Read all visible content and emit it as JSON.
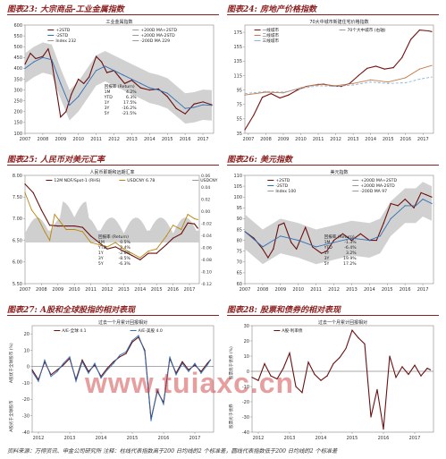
{
  "watermark": "www.tuiaxc.cn",
  "footer": {
    "source": "资料来源：万得资讯、申金公司研究所    注释：柱线代表指数高于200 日均线的2 个标准差，圆线代表指数低于200 日均线的2 个标准差"
  },
  "colors": {
    "title_red": "#8b1f1f",
    "band_gray": "#bdbdbd",
    "series_dark": "#6b0f0f",
    "series_blue": "#2f6fb5",
    "series_gold": "#b8860b"
  },
  "chart_data": [
    {
      "id": "c23",
      "type": "line",
      "panel_title": "图表23: 大宗商品-工业金属指数",
      "title": "工业金属指数",
      "x_ticks": [
        "2007",
        "2008",
        "2009",
        "2010",
        "2011",
        "2012",
        "2013",
        "2014",
        "2015",
        "2016",
        "2017"
      ],
      "xlim": [
        2007,
        2017.6
      ],
      "ylim": [
        100,
        600
      ],
      "y_ticks": [
        "100",
        "150",
        "200",
        "250",
        "300",
        "350",
        "400",
        "450",
        "500",
        "550",
        "600"
      ],
      "legend": [
        "+2STD",
        "-2STD",
        "Index 232",
        "+200D MA+2STD",
        "+200D MA-2STD",
        "-200D MA 229"
      ],
      "series": [
        {
          "name": "Index 232",
          "color": "#6b0f0f",
          "x": [
            2007,
            2007.3,
            2007.6,
            2008,
            2008.3,
            2008.5,
            2008.8,
            2009,
            2009.3,
            2009.6,
            2010,
            2010.3,
            2010.6,
            2011,
            2011.3,
            2011.6,
            2012,
            2012.3,
            2012.6,
            2013,
            2013.5,
            2014,
            2014.5,
            2015,
            2015.5,
            2016,
            2016.5,
            2017,
            2017.5
          ],
          "values": [
            420,
            470,
            445,
            455,
            490,
            430,
            280,
            175,
            200,
            280,
            350,
            330,
            360,
            455,
            430,
            380,
            390,
            360,
            330,
            345,
            310,
            300,
            305,
            270,
            215,
            190,
            235,
            245,
            232
          ]
        },
        {
          "name": "-200D MA 229",
          "color": "#2f6fb5",
          "x": [
            2007,
            2007.5,
            2008,
            2008.5,
            2009,
            2009.5,
            2010,
            2010.5,
            2011,
            2011.5,
            2012,
            2012.5,
            2013,
            2013.5,
            2014,
            2014.5,
            2015,
            2015.5,
            2016,
            2016.5,
            2017,
            2017.5
          ],
          "values": [
            400,
            430,
            450,
            440,
            330,
            230,
            270,
            330,
            390,
            410,
            390,
            370,
            350,
            330,
            310,
            300,
            285,
            250,
            215,
            220,
            232,
            229
          ]
        }
      ],
      "inset": {
        "header": "回报率 (Return)",
        "rows": [
          [
            "1M",
            "4.2%"
          ],
          [
            "YTD",
            "6.3%"
          ],
          [
            "1Y",
            "17.5%"
          ],
          [
            "3Y",
            "-16.2%"
          ],
          [
            "5Y",
            "-21.5%"
          ]
        ]
      }
    },
    {
      "id": "c24",
      "type": "line",
      "panel_title": "图表24: 房地产价格指数",
      "title": "70大中城市新建住宅价格指数",
      "x_ticks": [
        "2007",
        "2008",
        "2009",
        "2010",
        "2011",
        "2012",
        "2013",
        "2014",
        "2015",
        "2016",
        "2017"
      ],
      "xlim": [
        2006.8,
        2017.6
      ],
      "ylim": [
        35,
        185
      ],
      "y_ticks": [
        "35",
        "55",
        "75",
        "95",
        "115",
        "135",
        "155",
        "175"
      ],
      "legend": [
        "一线城市",
        "二线城市",
        "三线城市",
        "70个大中城市 (右轴)"
      ],
      "series": [
        {
          "name": "一线城市",
          "color": "#7a1010",
          "x": [
            2006.8,
            2007.3,
            2007.8,
            2008.3,
            2008.8,
            2009.3,
            2009.8,
            2010.3,
            2010.8,
            2011.3,
            2011.8,
            2012.3,
            2012.8,
            2013.3,
            2013.8,
            2014.3,
            2014.8,
            2015.3,
            2015.8,
            2016.3,
            2016.8,
            2017.3,
            2017.5
          ],
          "values": [
            40,
            60,
            85,
            90,
            84,
            88,
            95,
            100,
            102,
            103,
            101,
            100,
            104,
            115,
            125,
            128,
            124,
            126,
            140,
            165,
            178,
            177,
            176
          ]
        },
        {
          "name": "二线城市",
          "color": "#c77a4a",
          "x": [
            2006.8,
            2008,
            2009,
            2010,
            2011,
            2012,
            2013,
            2014,
            2015,
            2016,
            2016.8,
            2017.5
          ],
          "values": [
            88,
            92,
            91,
            98,
            103,
            101,
            104,
            109,
            106,
            112,
            124,
            129
          ]
        },
        {
          "name": "三线城市",
          "color": "#8fb3d9",
          "x": [
            2006.8,
            2008,
            2009,
            2010,
            2011,
            2012,
            2013,
            2014,
            2015,
            2016,
            2016.8,
            2017.5
          ],
          "values": [
            90,
            93,
            92,
            97,
            101,
            100,
            102,
            106,
            104,
            105,
            110,
            113
          ]
        }
      ]
    },
    {
      "id": "c25",
      "type": "line",
      "panel_title": "图表25: 人民币对美元汇率",
      "title": "人民币即期和远期汇率",
      "x_ticks": [
        "2007",
        "2008",
        "2009",
        "2010",
        "2011",
        "2012",
        "2013",
        "2014",
        "2015",
        "2016",
        "2017"
      ],
      "xlim": [
        2007,
        2017.6
      ],
      "ylim": [
        5.5,
        8.0
      ],
      "y_ticks": [
        "5.50",
        "6.00",
        "6.50",
        "7.00",
        "7.50",
        "8.00"
      ],
      "y2_ticks": [
        "-0.12",
        "-0.10",
        "-0.08",
        "-0.06",
        "-0.04",
        "-0.02",
        "0.00",
        "0.02",
        "0.04",
        "0.06"
      ],
      "legend": [
        "12M NDF/Spot-1 (RHS)",
        "USDCNY 6.78",
        "USDCNY 12M NDF 6.98"
      ],
      "series": [
        {
          "name": "USDCNY 6.78",
          "color": "#6b0f0f",
          "x": [
            2007,
            2007.5,
            2008,
            2008.5,
            2009,
            2010,
            2010.5,
            2011,
            2011.5,
            2012,
            2012.5,
            2013,
            2013.5,
            2014,
            2014.5,
            2015,
            2015.6,
            2016,
            2016.5,
            2016.9,
            2017.3,
            2017.5
          ],
          "values": [
            7.8,
            7.6,
            7.2,
            6.85,
            6.83,
            6.83,
            6.8,
            6.6,
            6.45,
            6.3,
            6.35,
            6.25,
            6.15,
            6.05,
            6.2,
            6.2,
            6.4,
            6.55,
            6.65,
            6.9,
            6.88,
            6.78
          ]
        },
        {
          "name": "USDCNY 12M NDF 6.98",
          "color": "#b8860b",
          "x": [
            2007,
            2007.4,
            2007.8,
            2008.2,
            2008.5,
            2008.8,
            2009.1,
            2009.5,
            2010,
            2010.5,
            2011,
            2011.5,
            2012,
            2012.5,
            2013,
            2013.5,
            2014,
            2014.5,
            2015,
            2015.6,
            2016,
            2016.5,
            2016.9,
            2017.3,
            2017.5
          ],
          "values": [
            7.6,
            7.2,
            7.0,
            6.7,
            6.5,
            7.1,
            6.95,
            6.75,
            6.75,
            6.7,
            6.45,
            6.4,
            6.35,
            6.45,
            6.3,
            6.2,
            6.1,
            6.25,
            6.3,
            6.6,
            6.85,
            6.75,
            7.1,
            7.0,
            6.98
          ]
        }
      ],
      "inset": {
        "header": "回报率 (Return)",
        "rows": [
          [
            "1M",
            "0.5%"
          ],
          [
            "YTD",
            "2.4%"
          ],
          [
            "1Y",
            "-2.0%"
          ],
          [
            "3Y",
            "-8.5%"
          ],
          [
            "5Y",
            "-6.3%"
          ]
        ]
      }
    },
    {
      "id": "c26",
      "type": "line",
      "panel_title": "图表26: 美元指数",
      "title": "美元指数",
      "x_ticks": [
        "2007",
        "2008",
        "2009",
        "2010",
        "2011",
        "2012",
        "2013",
        "2014",
        "2015",
        "2016",
        "2017"
      ],
      "xlim": [
        2007,
        2017.6
      ],
      "ylim": [
        60,
        110
      ],
      "y_ticks": [
        "60",
        "65",
        "70",
        "75",
        "80",
        "85",
        "90",
        "95",
        "100",
        "105",
        "110"
      ],
      "legend": [
        "+2STD",
        "-2STD",
        "Index 100",
        "+200D MA+2STD",
        "+200D MA-2STD",
        "-200D MA 97"
      ],
      "series": [
        {
          "name": "Index 100",
          "color": "#6b0f0f",
          "x": [
            2007,
            2007.5,
            2008,
            2008.3,
            2008.6,
            2008.9,
            2009.2,
            2009.6,
            2009.9,
            2010.4,
            2010.8,
            2011.3,
            2011.6,
            2012,
            2012.5,
            2013,
            2013.5,
            2014,
            2014.4,
            2014.8,
            2015.2,
            2015.6,
            2016,
            2016.5,
            2016.9,
            2017.2,
            2017.5
          ],
          "values": [
            84,
            81,
            76,
            72,
            76,
            87,
            88,
            79,
            76,
            86,
            77,
            74,
            75,
            80,
            83,
            80,
            83,
            80,
            80,
            88,
            97,
            96,
            99,
            95,
            102,
            101,
            100
          ]
        },
        {
          "name": "-200D MA 97",
          "color": "#2f6fb5",
          "x": [
            2007,
            2008,
            2009,
            2010,
            2011,
            2012,
            2013,
            2014,
            2014.6,
            2015.2,
            2016,
            2016.6,
            2017,
            2017.5
          ],
          "values": [
            84,
            77,
            82,
            80,
            77,
            79,
            81,
            80,
            82,
            90,
            96,
            96,
            99,
            97
          ]
        }
      ],
      "inset": {
        "header": "回报率 (Return)",
        "rows": [
          [
            "1M",
            "-1.3%"
          ],
          [
            "YTD",
            "-6.4%"
          ],
          [
            "1Y",
            "3.2%"
          ],
          [
            "3Y",
            "19.9%"
          ],
          [
            "5Y",
            "17.2%"
          ]
        ]
      }
    },
    {
      "id": "c27",
      "type": "line",
      "panel_title": "图表27: A股和全球股指的相对表现",
      "title": "过去一个月累计回报相对",
      "x_ticks": [
        "2012",
        "2013",
        "2014",
        "2015",
        "2016",
        "2017"
      ],
      "xlim": [
        2011.8,
        2017.6
      ],
      "ylim": [
        -40,
        25
      ],
      "y_ticks": [
        "-40",
        "-30",
        "-20",
        "-10",
        "0",
        "10",
        "20"
      ],
      "ylabel": "A股优于全球股市 (%)",
      "ylabel_bottom": "A股劣于全球股市",
      "legend": [
        "A/E-全球 4.1",
        "A/E-美股 4.0"
      ],
      "series": [
        {
          "name": "A/E-全球 4.1",
          "color": "#6b0f0f",
          "x": [
            2011.8,
            2012.0,
            2012.2,
            2012.4,
            2012.6,
            2012.8,
            2013.0,
            2013.2,
            2013.4,
            2013.6,
            2013.8,
            2014.0,
            2014.2,
            2014.4,
            2014.6,
            2014.8,
            2015.0,
            2015.2,
            2015.4,
            2015.6,
            2015.8,
            2016.0,
            2016.2,
            2016.4,
            2016.6,
            2016.8,
            2017.0,
            2017.2,
            2017.4,
            2017.5
          ],
          "values": [
            -2,
            -8,
            3,
            -5,
            -2,
            1,
            5,
            -8,
            4,
            -3,
            1,
            -6,
            -1,
            3,
            6,
            8,
            15,
            18,
            10,
            -32,
            -15,
            -22,
            5,
            -4,
            3,
            -2,
            1,
            -3,
            2,
            4.1
          ]
        },
        {
          "name": "A/E-美股 4.0",
          "color": "#2f6fb5",
          "x": [
            2011.8,
            2012.0,
            2012.2,
            2012.4,
            2012.6,
            2012.8,
            2013.0,
            2013.2,
            2013.4,
            2013.6,
            2013.8,
            2014.0,
            2014.2,
            2014.4,
            2014.6,
            2014.8,
            2015.0,
            2015.2,
            2015.4,
            2015.6,
            2015.8,
            2016.0,
            2016.2,
            2016.4,
            2016.6,
            2016.8,
            2017.0,
            2017.2,
            2017.4,
            2017.5
          ],
          "values": [
            -3,
            -9,
            4,
            -6,
            -3,
            2,
            6,
            -9,
            3,
            -4,
            2,
            -7,
            -2,
            2,
            7,
            9,
            16,
            19,
            9,
            -33,
            -14,
            -23,
            6,
            -5,
            2,
            -3,
            2,
            -4,
            1,
            4.0
          ]
        }
      ]
    },
    {
      "id": "c28",
      "type": "line",
      "panel_title": "图表28: 股票和债券的相对表现",
      "title": "过去一个月累计回报相对",
      "x_ticks": [
        "2012",
        "2013",
        "2014",
        "2015",
        "2016",
        "2017"
      ],
      "xlim": [
        2011.8,
        2017.6
      ],
      "ylim": [
        -40,
        30
      ],
      "y_ticks": [
        "-40",
        "-30",
        "-20",
        "-10",
        "0",
        "10",
        "20",
        "30"
      ],
      "ylabel": "股票优于债券 (%)",
      "ylabel_bottom": "股票劣于债券",
      "legend": [
        "A股-利率债"
      ],
      "series": [
        {
          "name": "A股-利率债",
          "color": "#6b0f0f",
          "x": [
            2011.8,
            2012.0,
            2012.2,
            2012.4,
            2012.6,
            2012.8,
            2013.0,
            2013.2,
            2013.4,
            2013.6,
            2013.8,
            2014.0,
            2014.2,
            2014.4,
            2014.6,
            2014.8,
            2015.0,
            2015.2,
            2015.4,
            2015.6,
            2015.8,
            2016.0,
            2016.2,
            2016.4,
            2016.6,
            2016.8,
            2017.0,
            2017.2,
            2017.4,
            2017.5
          ],
          "values": [
            -4,
            -6,
            5,
            -3,
            -5,
            2,
            12,
            -10,
            -14,
            6,
            -2,
            -6,
            -3,
            5,
            9,
            15,
            27,
            22,
            18,
            -30,
            -12,
            -38,
            10,
            -4,
            3,
            -2,
            4,
            -3,
            2,
            1
          ]
        }
      ]
    }
  ]
}
